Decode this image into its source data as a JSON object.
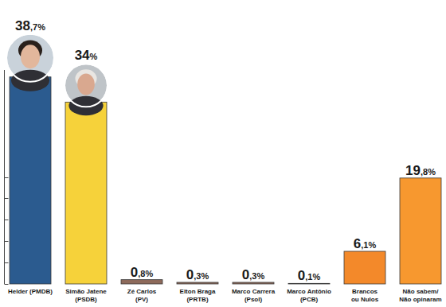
{
  "chart_data": {
    "type": "bar",
    "categories": [
      "Helder (PMDB)",
      "Simão Jatene\n(PSDB)",
      "Zé Carlos\n(PV)",
      "Elton Braga\n(PRTB)",
      "Marco Carrera\n(Psol)",
      "Marco Antônio\n(PCB)",
      "Brancos\nou Nulos",
      "Não sabem/\nNão opinaram"
    ],
    "values": [
      38.7,
      34,
      0.8,
      0.3,
      0.3,
      0.1,
      6.1,
      19.8
    ],
    "value_labels": [
      "38,7%",
      "34%",
      "0,8%",
      "0,3%",
      "0,3%",
      "0,1%",
      "6,1%",
      "19,8%"
    ],
    "colors": [
      "#2b5b8f",
      "#f6d23a",
      "#8d6a5b",
      "#8d6a5b",
      "#8d6a5b",
      "#8d6a5b",
      "#f3892a",
      "#f7982f"
    ],
    "ylim": [
      0,
      40
    ],
    "yticks": [
      0,
      4,
      8,
      12,
      16,
      20
    ],
    "tick_labels": false,
    "data_labels": true,
    "grid": false
  }
}
